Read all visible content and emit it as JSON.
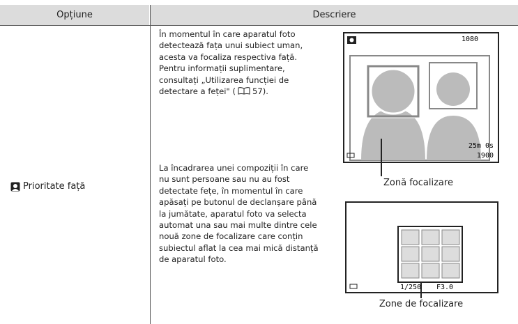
{
  "header": {
    "columns": [
      "Opțiune",
      "Descriere"
    ]
  },
  "rows": [
    {
      "option": "Prioritate față",
      "paragraphs": [
        [
          "În momentul în care aparatul foto",
          "detectează fața unui subiect uman,",
          "acesta va focaliza respectiva față.",
          "Pentru informații suplimentare,",
          "consultați „Utilizarea funcției de",
          "detectare a feței\" (",
          "57)."
        ],
        [
          "La încadrarea unei compoziții în care",
          "nu sunt persoane sau nu au fost",
          "detectate fețe, în momentul în care",
          "apăsați pe butonul de declanșare până",
          "la jumătate, aparatul foto va selecta",
          "automat una sau mai multe dintre cele",
          "nouă zone de focalizare care conțin",
          "subiectul aflat la cea mai mică distanță",
          "de aparatul foto."
        ]
      ],
      "figures": [
        {
          "caption": "Zonă focalizare",
          "screen": {
            "top_right": "1080",
            "time": "25m 0s",
            "count": "1900"
          }
        },
        {
          "caption": "Zone de focalizare",
          "screen": {
            "shutter": "1/250",
            "aperture": "F3.0"
          }
        }
      ]
    }
  ]
}
